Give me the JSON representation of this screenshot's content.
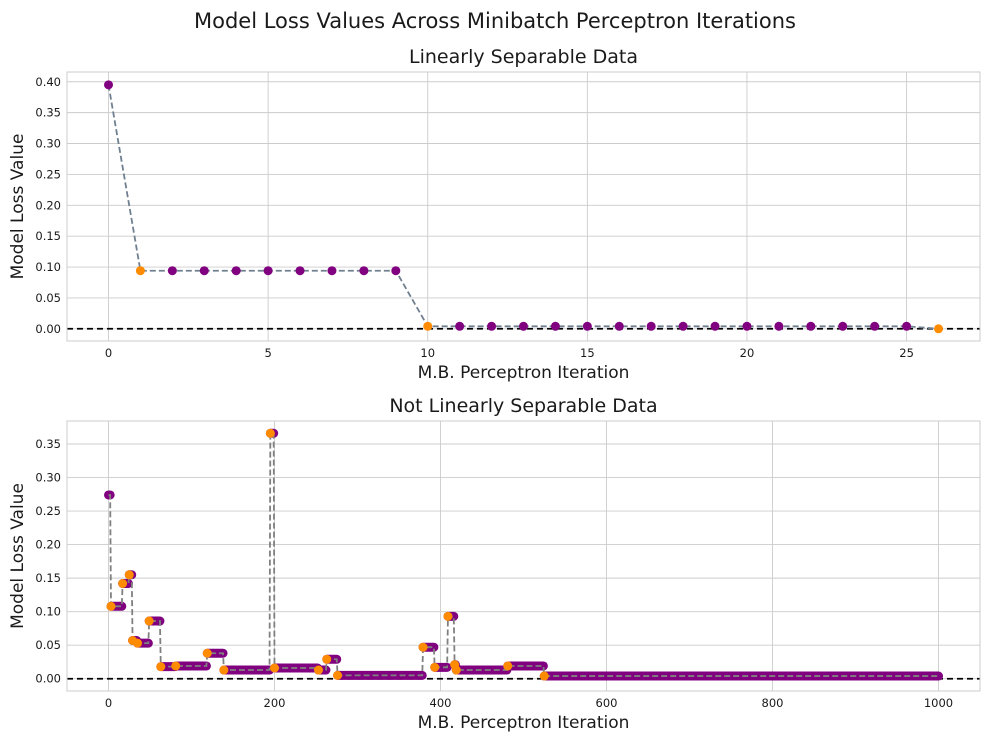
{
  "figure": {
    "suptitle": "Model Loss Values Across Minibatch Perceptron Iterations"
  },
  "chart_data": [
    {
      "type": "line",
      "title": "Linearly Separable Data",
      "xlabel": "M.B. Perceptron Iteration",
      "ylabel": "Model Loss Value",
      "xlim": [
        -1.3,
        27.3
      ],
      "ylim": [
        -0.0198,
        0.4158
      ],
      "xticks": [
        0,
        5,
        10,
        15,
        20,
        25
      ],
      "yticks": [
        0.0,
        0.05,
        0.1,
        0.15,
        0.2,
        0.25,
        0.3,
        0.35,
        0.4
      ],
      "ytick_labels": [
        "0.00",
        "0.05",
        "0.10",
        "0.15",
        "0.20",
        "0.25",
        "0.30",
        "0.35",
        "0.40"
      ],
      "grid": true,
      "reference_line": 0,
      "series": [
        {
          "x": [
            0,
            1,
            2,
            3,
            4,
            5,
            6,
            7,
            8,
            9,
            10,
            11,
            12,
            13,
            14,
            15,
            16,
            17,
            18,
            19,
            20,
            21,
            22,
            23,
            24,
            25,
            26
          ],
          "values": [
            0.395,
            0.094,
            0.094,
            0.094,
            0.094,
            0.094,
            0.094,
            0.094,
            0.094,
            0.094,
            0.004,
            0.004,
            0.004,
            0.004,
            0.004,
            0.004,
            0.004,
            0.004,
            0.004,
            0.004,
            0.004,
            0.004,
            0.004,
            0.004,
            0.004,
            0.004,
            0.0
          ],
          "highlight_x": [
            1,
            10,
            26
          ]
        }
      ],
      "colors": {
        "line": "#708090",
        "marker": "#800080",
        "highlight": "#ff8c00",
        "reference": "#000000",
        "grid": "#cccccc"
      }
    },
    {
      "type": "line",
      "title": "Not Linearly Separable Data",
      "xlabel": "M.B. Perceptron Iteration",
      "ylabel": "Model Loss Value",
      "xlim": [
        -50,
        1050
      ],
      "ylim": [
        -0.0183,
        0.3843
      ],
      "xticks": [
        0,
        200,
        400,
        600,
        800,
        1000
      ],
      "yticks": [
        0.0,
        0.05,
        0.1,
        0.15,
        0.2,
        0.25,
        0.3,
        0.35
      ],
      "ytick_labels": [
        "0.00",
        "0.05",
        "0.10",
        "0.15",
        "0.20",
        "0.25",
        "0.30",
        "0.35"
      ],
      "grid": true,
      "reference_line": 0,
      "segments": [
        {
          "x_start": 0,
          "x_end": 2,
          "value": 0.274
        },
        {
          "x_start": 3,
          "x_end": 16,
          "value": 0.108
        },
        {
          "x_start": 17,
          "x_end": 24,
          "value": 0.142
        },
        {
          "x_start": 25,
          "x_end": 28,
          "value": 0.155
        },
        {
          "x_start": 29,
          "x_end": 34,
          "value": 0.057
        },
        {
          "x_start": 35,
          "x_end": 48,
          "value": 0.053
        },
        {
          "x_start": 49,
          "x_end": 62,
          "value": 0.086
        },
        {
          "x_start": 63,
          "x_end": 80,
          "value": 0.018
        },
        {
          "x_start": 81,
          "x_end": 118,
          "value": 0.019
        },
        {
          "x_start": 119,
          "x_end": 138,
          "value": 0.038
        },
        {
          "x_start": 139,
          "x_end": 194,
          "value": 0.013
        },
        {
          "x_start": 195,
          "x_end": 199,
          "value": 0.366
        },
        {
          "x_start": 200,
          "x_end": 252,
          "value": 0.016
        },
        {
          "x_start": 253,
          "x_end": 262,
          "value": 0.013
        },
        {
          "x_start": 263,
          "x_end": 275,
          "value": 0.029
        },
        {
          "x_start": 276,
          "x_end": 378,
          "value": 0.005
        },
        {
          "x_start": 379,
          "x_end": 392,
          "value": 0.047
        },
        {
          "x_start": 393,
          "x_end": 408,
          "value": 0.017
        },
        {
          "x_start": 409,
          "x_end": 416,
          "value": 0.093
        },
        {
          "x_start": 417,
          "x_end": 418,
          "value": 0.021
        },
        {
          "x_start": 419,
          "x_end": 480,
          "value": 0.013
        },
        {
          "x_start": 481,
          "x_end": 524,
          "value": 0.019
        },
        {
          "x_start": 525,
          "x_end": 1000,
          "value": 0.004
        }
      ],
      "colors": {
        "line": "#808080",
        "marker": "#800080",
        "highlight": "#ff8c00",
        "reference": "#000000",
        "grid": "#cccccc"
      }
    }
  ]
}
